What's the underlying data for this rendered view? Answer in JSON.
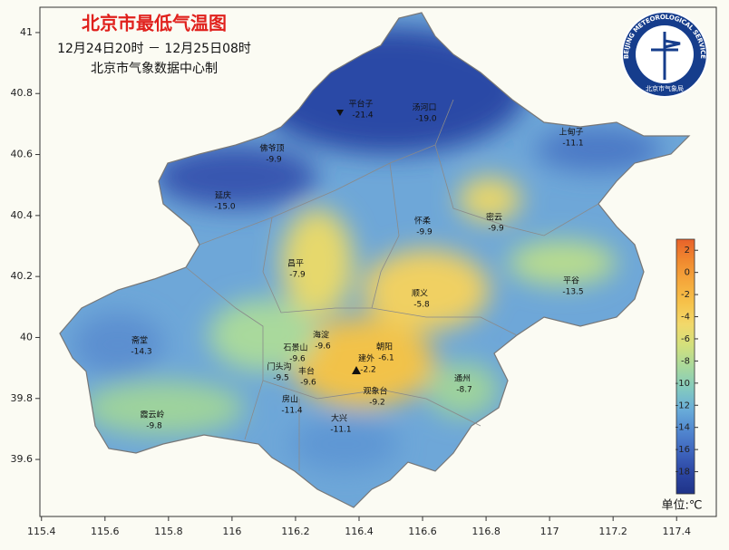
{
  "header": {
    "title": "北京市最低气温图",
    "subtitle": "12月24日20时 － 12月25日08时",
    "producer": "北京市气象数据中心制"
  },
  "logo": {
    "text_en": "BEIJING METEOROLOGICAL SERVICE",
    "text_cn": "北京市气象局"
  },
  "axes": {
    "xlim": [
      115.395,
      117.525
    ],
    "ylim": [
      39.413,
      41.083
    ],
    "xticks": [
      115.4,
      115.6,
      115.8,
      116,
      116.2,
      116.4,
      116.6,
      116.8,
      117,
      117.2,
      117.4
    ],
    "yticks": [
      39.6,
      39.8,
      40,
      40.2,
      40.4,
      40.6,
      40.8,
      41
    ]
  },
  "stations": [
    {
      "name": "平台子",
      "value": -21.4
    },
    {
      "name": "汤河口",
      "value": -19,
      "value_label": "-19.0"
    },
    {
      "name": "佛爷顶",
      "value": -9.9
    },
    {
      "name": "上甸子",
      "value": -11.1
    },
    {
      "name": "延庆",
      "value": -15,
      "value_label": "-15.0"
    },
    {
      "name": "怀柔",
      "value": -9.9
    },
    {
      "name": "密云",
      "value": -9.9
    },
    {
      "name": "昌平",
      "value": -7.9
    },
    {
      "name": "平谷",
      "value": -13.5
    },
    {
      "name": "顺义",
      "value": -5.8
    },
    {
      "name": "斋堂",
      "value": -14.3
    },
    {
      "name": "海淀",
      "value": -9.6
    },
    {
      "name": "朝阳",
      "value": -6.1
    },
    {
      "name": "石景山",
      "value": -9.6
    },
    {
      "name": "建外",
      "value": -2.2
    },
    {
      "name": "门头沟",
      "value": -9.5
    },
    {
      "name": "丰台",
      "value": -9.6
    },
    {
      "name": "观象台",
      "value": -9.2
    },
    {
      "name": "通州",
      "value": -8.7
    },
    {
      "name": "霞云岭",
      "value": -9.8
    },
    {
      "name": "房山",
      "value": -11.4
    },
    {
      "name": "大兴",
      "value": -11.1
    }
  ],
  "colorbar": {
    "lim": [
      -20,
      3
    ],
    "ticks": [
      2,
      0,
      -2,
      -4,
      -6,
      -8,
      -10,
      -12,
      -14,
      -16,
      -18
    ],
    "colors": [
      "#1f3388",
      "#2c46a3",
      "#3f66be",
      "#5288d0",
      "#6aaed9",
      "#84cbbd",
      "#a9d99c",
      "#d3e07c",
      "#f2d86a",
      "#f6c24a",
      "#f5a83c",
      "#f0892f",
      "#e8622a"
    ],
    "unit": "单位:℃"
  }
}
